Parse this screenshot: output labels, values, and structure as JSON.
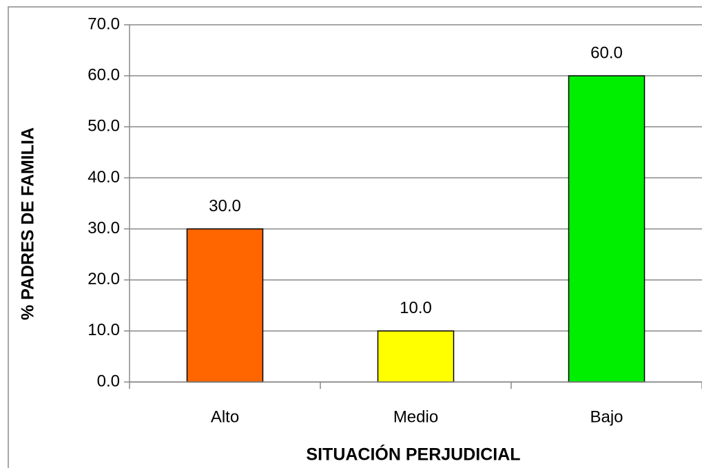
{
  "chart_data": {
    "type": "bar",
    "x_label": "SITUACIÓN PERJUDICIAL",
    "y_label": "% PADRES DE FAMILIA",
    "categories": [
      "Alto",
      "Medio",
      "Bajo"
    ],
    "values": [
      30,
      10,
      60
    ],
    "value_labels": [
      "30.0",
      "10.0",
      "60.0"
    ],
    "colors": [
      "#ff6600",
      "#ffff00",
      "#00ee00"
    ],
    "ylim": [
      0,
      70
    ],
    "yticks": [
      {
        "value": 0,
        "label": "0.0"
      },
      {
        "value": 10,
        "label": "10.0"
      },
      {
        "value": 20,
        "label": "20.0"
      },
      {
        "value": 30,
        "label": "30.0"
      },
      {
        "value": 40,
        "label": "40.0"
      },
      {
        "value": 50,
        "label": "50.0"
      },
      {
        "value": 60,
        "label": "60.0"
      },
      {
        "value": 70,
        "label": "70.0"
      }
    ],
    "grid": true
  }
}
